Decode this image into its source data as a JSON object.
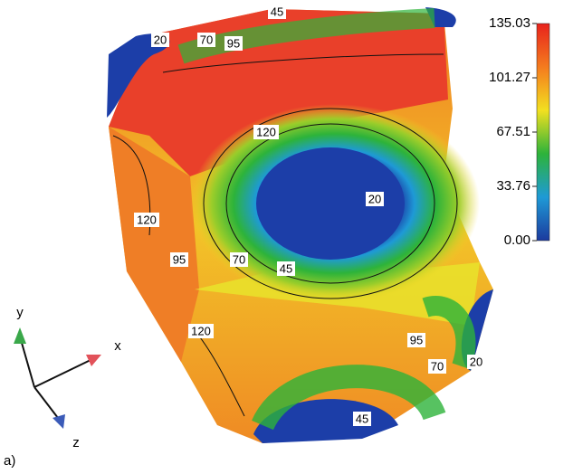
{
  "figure": {
    "panel_label": "a)",
    "colorbar": {
      "ticks": [
        "135.03",
        "101.27",
        "67.51",
        "33.76",
        "0.00"
      ]
    },
    "axes": {
      "x": "x",
      "y": "y",
      "z": "z"
    },
    "contour_labels": [
      "45",
      "20",
      "70",
      "95",
      "120",
      "20",
      "120",
      "95",
      "70",
      "45",
      "120",
      "95",
      "70",
      "20",
      "45"
    ]
  }
}
